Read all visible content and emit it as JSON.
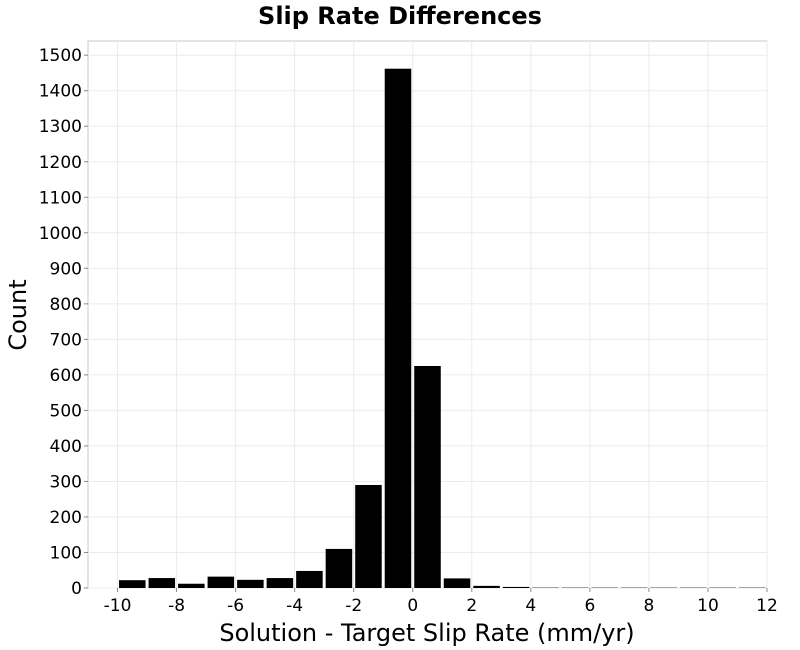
{
  "chart_data": {
    "type": "bar",
    "title": "Slip Rate Differences",
    "xlabel": "Solution - Target Slip Rate (mm/yr)",
    "ylabel": "Count",
    "xlim": [
      -11,
      12
    ],
    "ylim": [
      0,
      1540
    ],
    "xticks": [
      -10,
      -8,
      -6,
      -4,
      -2,
      0,
      2,
      4,
      6,
      8,
      10,
      12
    ],
    "yticks": [
      0,
      100,
      200,
      300,
      400,
      500,
      600,
      700,
      800,
      900,
      1000,
      1100,
      1200,
      1300,
      1400,
      1500
    ],
    "bin_width": 1,
    "grid": true,
    "bar_color": "#000000",
    "bins": [
      {
        "center": -9.5,
        "value": 22
      },
      {
        "center": -8.5,
        "value": 28
      },
      {
        "center": -7.5,
        "value": 12
      },
      {
        "center": -6.5,
        "value": 32
      },
      {
        "center": -5.5,
        "value": 23
      },
      {
        "center": -4.5,
        "value": 28
      },
      {
        "center": -3.5,
        "value": 48
      },
      {
        "center": -2.5,
        "value": 110
      },
      {
        "center": -1.5,
        "value": 290
      },
      {
        "center": -0.5,
        "value": 1462
      },
      {
        "center": 0.5,
        "value": 625
      },
      {
        "center": 1.5,
        "value": 27
      },
      {
        "center": 2.5,
        "value": 6
      },
      {
        "center": 3.5,
        "value": 3
      },
      {
        "center": 4.5,
        "value": 1
      },
      {
        "center": 5.5,
        "value": 1
      },
      {
        "center": 6.5,
        "value": 1
      },
      {
        "center": 7.5,
        "value": 1
      },
      {
        "center": 8.5,
        "value": 1
      },
      {
        "center": 9.5,
        "value": 1
      },
      {
        "center": 10.5,
        "value": 1
      },
      {
        "center": 11.5,
        "value": 1
      }
    ]
  }
}
